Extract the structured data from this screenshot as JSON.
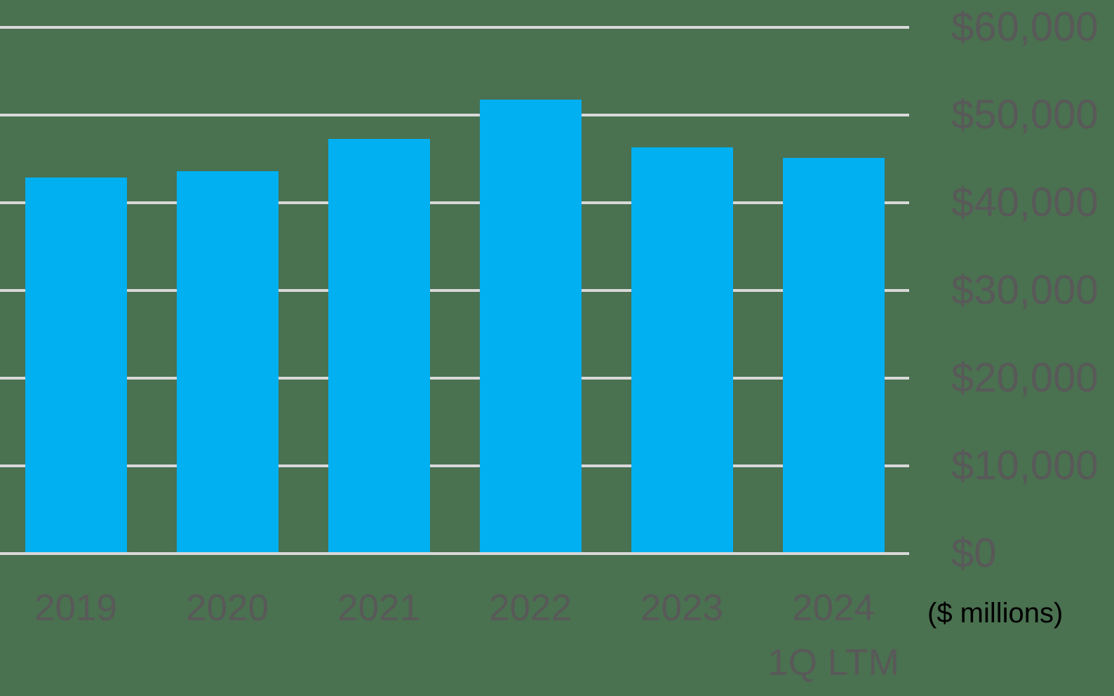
{
  "chart_data": {
    "type": "bar",
    "title": "",
    "xlabel": "",
    "ylabel": "",
    "units_note": "($ millions)",
    "categories": [
      [
        "2019"
      ],
      [
        "2020"
      ],
      [
        "2021"
      ],
      [
        "2022"
      ],
      [
        "2023"
      ],
      [
        "2024",
        "1Q LTM"
      ]
    ],
    "values": [
      42900,
      43600,
      47300,
      51800,
      46300,
      45100
    ],
    "ylim": [
      0,
      60000
    ],
    "y_tick_step": 10000,
    "y_ticks": [
      {
        "value": 0,
        "label": "$0"
      },
      {
        "value": 10000,
        "label": "$10,000"
      },
      {
        "value": 20000,
        "label": "$20,000"
      },
      {
        "value": 30000,
        "label": "$30,000"
      },
      {
        "value": 40000,
        "label": "$40,000"
      },
      {
        "value": 50000,
        "label": "$50,000"
      },
      {
        "value": 60000,
        "label": "$60,000"
      }
    ],
    "grid": true,
    "y_axis_side": "right",
    "legend": null,
    "colors": {
      "background": "#4a7150",
      "bar": "#00b0f0",
      "gridline": "#d9d9d9",
      "axis_label": "#595959",
      "units_note": "#000000"
    }
  }
}
